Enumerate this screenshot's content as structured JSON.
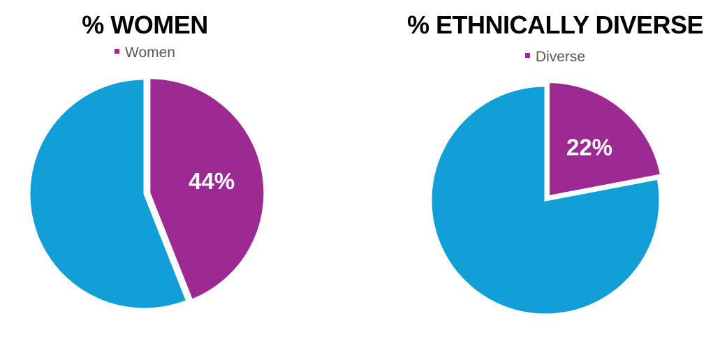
{
  "colors": {
    "highlight": "#9C2A92",
    "remainder": "#129ED6",
    "background": "#FFFFFF"
  },
  "chart_data": [
    {
      "type": "pie",
      "title": "% WOMEN",
      "legend": [
        {
          "name": "Women",
          "color": "#9C2A92"
        }
      ],
      "legend_placement": "top",
      "slices": [
        {
          "name": "Women",
          "value": 44,
          "label": "44%",
          "color": "#9C2A92"
        },
        {
          "name": "",
          "value": 56,
          "label": "",
          "color": "#129ED6"
        }
      ]
    },
    {
      "type": "pie",
      "title": "% ETHNICALLY DIVERSE",
      "legend": [
        {
          "name": "Diverse",
          "color": "#9C2A92"
        }
      ],
      "legend_placement": "top",
      "slices": [
        {
          "name": "Diverse",
          "value": 22,
          "label": "22%",
          "color": "#9C2A92"
        },
        {
          "name": "",
          "value": 78,
          "label": "",
          "color": "#129ED6"
        }
      ]
    }
  ]
}
